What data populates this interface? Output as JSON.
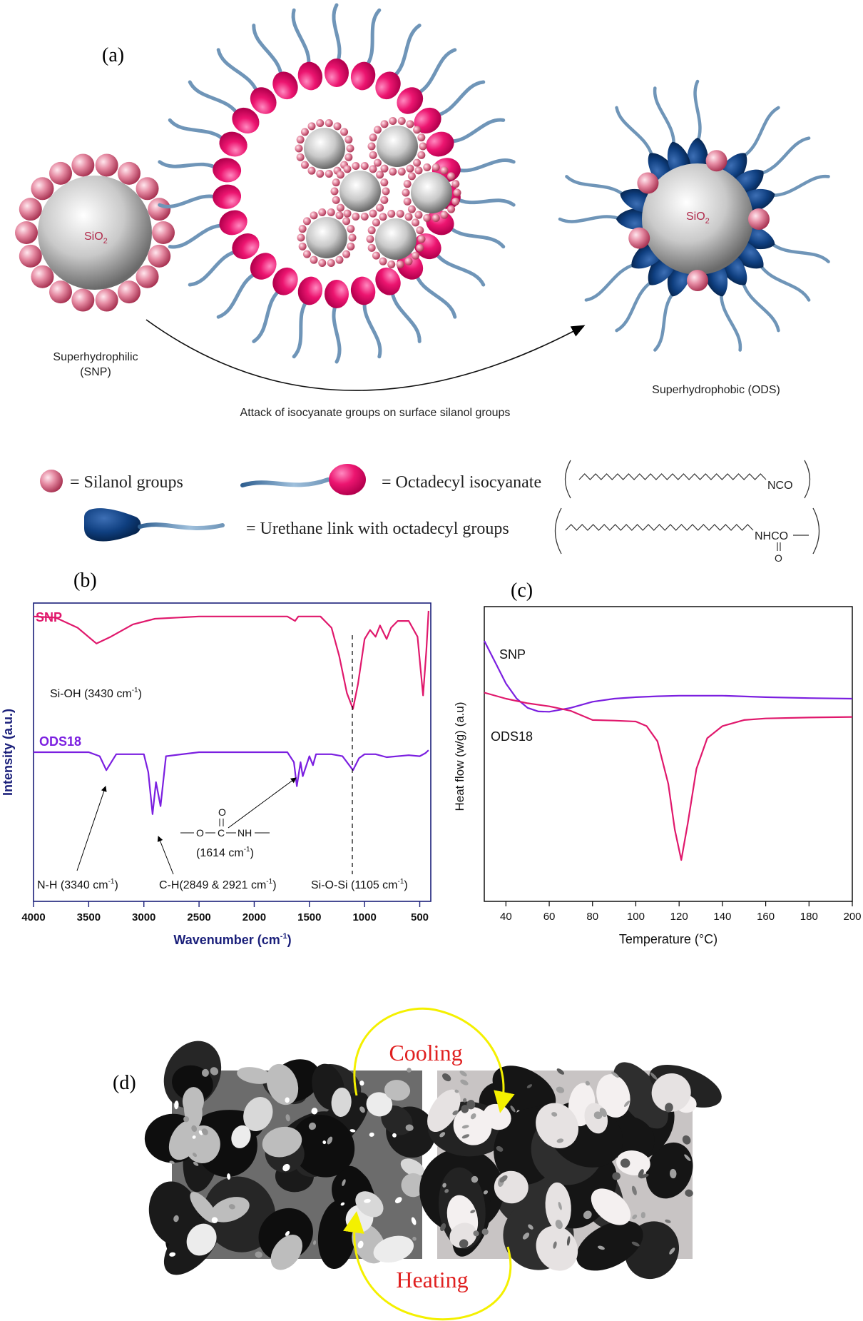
{
  "panels": {
    "a": "(a)",
    "b": "(b)",
    "c": "(c)",
    "d": "(d)"
  },
  "scheme": {
    "core_label": "SiO",
    "core_subscript": "2",
    "snp_label_line1": "Superhydrophilic",
    "snp_label_line2": "(SNP)",
    "ods_label": "Superhydrophobic (ODS)",
    "reaction_caption": "Attack of isocyanate groups on surface silanol groups"
  },
  "legend": {
    "silanol": "= Silanol groups",
    "isocyanate": "= Octadecyl isocyanate",
    "isocyanate_group": "NCO",
    "urethane": "= Urethane link with octadecyl groups",
    "urethane_group": "NHCO",
    "urethane_oxygen": "O"
  },
  "colors": {
    "silanol": "#c24a68",
    "isocyanate_head": "#e8106e",
    "urethane_head": "#0d3b78",
    "tail": "#7ea6c8",
    "snp_trace": "#e0186c",
    "ods_trace": "#7b1fe0",
    "ftir_frame": "#1a1f7a",
    "cooling_text": "#e02020",
    "arrow_yellow": "#f4f000"
  },
  "ftir": {
    "xlabel": "Wavenumber (cm",
    "xlabel_sup": "-1",
    "xlabel_end": ")",
    "ylabel": "Intensity (a.u.)",
    "snp_name": "SNP",
    "ods_name": "ODS18",
    "xticks": [
      "4000",
      "3500",
      "3000",
      "2500",
      "2000",
      "1500",
      "1000",
      "500"
    ],
    "annotations": {
      "sioh": "Si-OH (3430 cm",
      "nh": "N-H (3340 cm",
      "ch": "C-H(2849 & 2921 cm",
      "urethane": "(1614 cm",
      "siosi": "Si-O-Si (1105 cm",
      "sup": "-1",
      "close": ")",
      "struct_o_top": "O",
      "struct_o_left": "O",
      "struct_c": "C",
      "struct_nh": "NH"
    }
  },
  "chart_data": [
    {
      "type": "line",
      "title": "",
      "xlabel": "Wavenumber (cm-1)",
      "ylabel": "Intensity (a.u.)",
      "xlim": [
        4000,
        400
      ],
      "series": [
        {
          "name": "SNP",
          "x": [
            4000,
            3800,
            3600,
            3430,
            3300,
            3100,
            2900,
            2500,
            2000,
            1700,
            1630,
            1600,
            1400,
            1300,
            1230,
            1160,
            1105,
            1060,
            1000,
            950,
            900,
            860,
            800,
            760,
            700,
            600,
            520,
            470,
            440,
            420
          ],
          "y": [
            0.9,
            0.89,
            0.8,
            0.66,
            0.72,
            0.83,
            0.88,
            0.9,
            0.9,
            0.9,
            0.86,
            0.9,
            0.9,
            0.8,
            0.55,
            0.22,
            0.08,
            0.3,
            0.7,
            0.78,
            0.72,
            0.82,
            0.7,
            0.8,
            0.86,
            0.86,
            0.72,
            0.2,
            0.6,
            0.95
          ]
        },
        {
          "name": "ODS18",
          "x": [
            4000,
            3800,
            3500,
            3400,
            3340,
            3250,
            3000,
            2960,
            2921,
            2890,
            2849,
            2800,
            2500,
            2000,
            1700,
            1640,
            1614,
            1580,
            1560,
            1500,
            1468,
            1440,
            1300,
            1200,
            1105,
            1050,
            1000,
            900,
            800,
            600,
            500,
            450,
            420
          ],
          "y": [
            0.9,
            0.9,
            0.9,
            0.86,
            0.72,
            0.88,
            0.88,
            0.7,
            0.28,
            0.6,
            0.36,
            0.86,
            0.9,
            0.9,
            0.9,
            0.8,
            0.56,
            0.8,
            0.66,
            0.86,
            0.77,
            0.88,
            0.88,
            0.86,
            0.72,
            0.84,
            0.88,
            0.88,
            0.85,
            0.87,
            0.86,
            0.89,
            0.92
          ]
        }
      ]
    },
    {
      "type": "line",
      "title": "",
      "xlabel": "Temperature (°C)",
      "ylabel": "Heat flow (w/g) (a.u)",
      "xlim": [
        30,
        200
      ],
      "xticks": [
        40,
        60,
        80,
        100,
        120,
        140,
        160,
        180,
        200
      ],
      "series": [
        {
          "name": "SNP",
          "x": [
            30,
            35,
            40,
            45,
            50,
            55,
            60,
            70,
            80,
            90,
            100,
            110,
            120,
            130,
            140,
            160,
            180,
            200
          ],
          "y": [
            0.72,
            0.65,
            0.58,
            0.53,
            0.5,
            0.488,
            0.487,
            0.5,
            0.52,
            0.53,
            0.535,
            0.538,
            0.54,
            0.54,
            0.54,
            0.535,
            0.532,
            0.53
          ]
        },
        {
          "name": "ODS18",
          "x": [
            30,
            40,
            50,
            60,
            70,
            75,
            80,
            90,
            100,
            105,
            110,
            115,
            118,
            121,
            124,
            128,
            133,
            140,
            150,
            160,
            180,
            200
          ],
          "y": [
            0.55,
            0.53,
            0.515,
            0.505,
            0.49,
            0.475,
            0.46,
            0.458,
            0.455,
            0.44,
            0.39,
            0.25,
            0.1,
            0.0,
            0.12,
            0.3,
            0.4,
            0.44,
            0.46,
            0.465,
            0.468,
            0.47
          ]
        }
      ]
    }
  ],
  "dsc": {
    "xlabel": "Temperature (°C)",
    "ylabel": "Heat flow (w/g) (a.u)",
    "snp_name": "SNP",
    "ods_name": "ODS18",
    "xticks": [
      "40",
      "60",
      "80",
      "100",
      "120",
      "140",
      "160",
      "180",
      "200"
    ]
  },
  "micro": {
    "cooling": "Cooling",
    "heating": "Heating"
  }
}
